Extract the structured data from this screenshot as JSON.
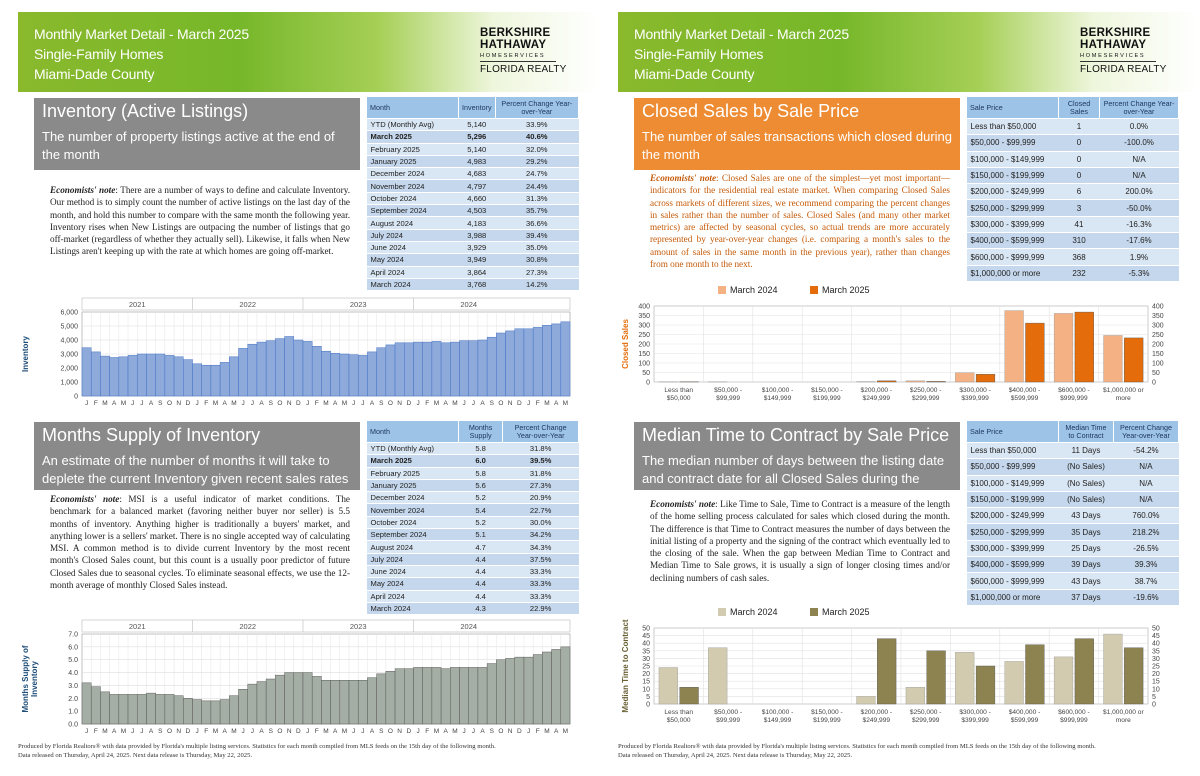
{
  "header": {
    "line1": "Monthly Market Detail - March 2025",
    "line2": "Single-Family Homes",
    "line3": "Miami-Dade County",
    "logo": {
      "line1": "BERKSHIRE",
      "line2": "HATHAWAY",
      "line3": "HOMESERVICES",
      "line4": "FLORIDA REALTY"
    }
  },
  "inventory": {
    "title": "Inventory (Active Listings)",
    "subtitle": "The number of property listings active at the end of the month",
    "note_label": "Economists' note",
    "note": ":  There are a number of ways to define and calculate Inventory.  Our method is to simply count the number of active listings on the last day of the month, and hold this number to compare with the same month the following year.  Inventory rises when New Listings are outpacing the number of listings that go off-market (regardless of whether they actually sell).  Likewise, it falls when New Listings aren't keeping up with the rate at which homes are going off-market.",
    "table_headers": [
      "Month",
      "Inventory",
      "Percent Change Year-over-Year"
    ],
    "rows": [
      [
        "YTD (Monthly Avg)",
        "5,140",
        "33.9%"
      ],
      [
        "March 2025",
        "5,296",
        "40.6%"
      ],
      [
        "February 2025",
        "5,140",
        "32.0%"
      ],
      [
        "January 2025",
        "4,983",
        "29.2%"
      ],
      [
        "December 2024",
        "4,683",
        "24.7%"
      ],
      [
        "November 2024",
        "4,797",
        "24.4%"
      ],
      [
        "October 2024",
        "4,660",
        "31.3%"
      ],
      [
        "September 2024",
        "4,503",
        "35.7%"
      ],
      [
        "August 2024",
        "4,183",
        "36.6%"
      ],
      [
        "July 2024",
        "3,988",
        "39.4%"
      ],
      [
        "June 2024",
        "3,929",
        "35.0%"
      ],
      [
        "May 2024",
        "3,949",
        "30.8%"
      ],
      [
        "April 2024",
        "3,864",
        "27.3%"
      ],
      [
        "March 2024",
        "3,768",
        "14.2%"
      ]
    ]
  },
  "msi": {
    "title": "Months Supply of Inventory",
    "subtitle": "An estimate of the number of months it will take to deplete the current Inventory given recent sales rates",
    "note_label": "Economists' note",
    "note": ":  MSI is a useful indicator of market conditions.  The benchmark for a balanced market (favoring neither buyer nor seller) is 5.5 months of inventory.  Anything higher is traditionally a buyers' market, and anything lower is a sellers' market.  There is no single accepted way of calculating MSI.  A common method is to divide current Inventory by the most recent month's Closed Sales count, but this count is a usually poor predictor of future Closed Sales due to seasonal cycles.  To eliminate seasonal effects, we use the 12-month average of monthly Closed Sales instead.",
    "table_headers": [
      "Month",
      "Months Supply",
      "Percent Change Year-over-Year"
    ],
    "rows": [
      [
        "YTD (Monthly Avg)",
        "5.8",
        "31.8%"
      ],
      [
        "March 2025",
        "6.0",
        "39.5%"
      ],
      [
        "February 2025",
        "5.8",
        "31.8%"
      ],
      [
        "January 2025",
        "5.6",
        "27.3%"
      ],
      [
        "December 2024",
        "5.2",
        "20.9%"
      ],
      [
        "November 2024",
        "5.4",
        "22.7%"
      ],
      [
        "October 2024",
        "5.2",
        "30.0%"
      ],
      [
        "September 2024",
        "5.1",
        "34.2%"
      ],
      [
        "August 2024",
        "4.7",
        "34.3%"
      ],
      [
        "July 2024",
        "4.4",
        "37.5%"
      ],
      [
        "June 2024",
        "4.4",
        "33.3%"
      ],
      [
        "May 2024",
        "4.4",
        "33.3%"
      ],
      [
        "April 2024",
        "4.4",
        "33.3%"
      ],
      [
        "March 2024",
        "4.3",
        "22.9%"
      ]
    ]
  },
  "closed": {
    "title": "Closed Sales by Sale Price",
    "subtitle": "The number of sales transactions which closed during the month",
    "note_label": "Economists' note",
    "note": ":  Closed Sales are one of the simplest—yet most important—indicators for the residential real estate market. When comparing Closed Sales across markets of different sizes, we recommend comparing the percent changes in sales rather than the number of sales. Closed Sales (and many other market metrics) are affected by seasonal cycles, so actual trends are more accurately represented by year-over-year changes (i.e. comparing a month's sales to the amount of sales in the same month in the previous year), rather than changes from one month to the next.",
    "table_headers": [
      "Sale Price",
      "Closed Sales",
      "Percent Change Year-over-Year"
    ],
    "rows": [
      [
        "Less than $50,000",
        "1",
        "0.0%"
      ],
      [
        "$50,000 - $99,999",
        "0",
        "-100.0%"
      ],
      [
        "$100,000 - $149,999",
        "0",
        "N/A"
      ],
      [
        "$150,000 - $199,999",
        "0",
        "N/A"
      ],
      [
        "$200,000 - $249,999",
        "6",
        "200.0%"
      ],
      [
        "$250,000 - $299,999",
        "3",
        "-50.0%"
      ],
      [
        "$300,000 - $399,999",
        "41",
        "-16.3%"
      ],
      [
        "$400,000 - $599,999",
        "310",
        "-17.6%"
      ],
      [
        "$600,000 - $999,999",
        "368",
        "1.9%"
      ],
      [
        "$1,000,000 or more",
        "232",
        "-5.3%"
      ]
    ]
  },
  "ttc": {
    "title": "Median Time to Contract by Sale Price",
    "subtitle": "The median number of days between the listing date and contract date for all Closed Sales during the month",
    "note_label": "Economists' note",
    "note": ":  Like Time to Sale, Time to Contract is a measure of the length of the home selling process calculated for sales which closed during the month.  The difference is that Time to Contract measures the number of days between the initial listing of a property and the signing of the contract which eventually led to the closing of the sale. When the gap between Median Time to Contract and Median Time to Sale grows, it is usually a sign of longer closing times and/or declining numbers of cash sales.",
    "table_headers": [
      "Sale Price",
      "Median Time to Contract",
      "Percent Change Year-over-Year"
    ],
    "rows": [
      [
        "Less than $50,000",
        "11 Days",
        "-54.2%"
      ],
      [
        "$50,000 - $99,999",
        "(No Sales)",
        "N/A"
      ],
      [
        "$100,000 - $149,999",
        "(No Sales)",
        "N/A"
      ],
      [
        "$150,000 - $199,999",
        "(No Sales)",
        "N/A"
      ],
      [
        "$200,000 - $249,999",
        "43 Days",
        "760.0%"
      ],
      [
        "$250,000 - $299,999",
        "35 Days",
        "218.2%"
      ],
      [
        "$300,000 - $399,999",
        "25 Days",
        "-26.5%"
      ],
      [
        "$400,000 - $599,999",
        "39 Days",
        "39.3%"
      ],
      [
        "$600,000 - $999,999",
        "43 Days",
        "38.7%"
      ],
      [
        "$1,000,000 or more",
        "37 Days",
        "-19.6%"
      ]
    ]
  },
  "footer": {
    "line1": "Produced by Florida Realtors® with data provided by Florida's multiple listing services. Statistics for each month compiled from MLS feeds on the 15th day of the following month.",
    "line2": "Data released on Thursday, April 24, 2025. Next data release is Thursday, May 22, 2025."
  },
  "colors": {
    "green": "#76b72a",
    "orange": "#ee8c34",
    "gray": "#8a8a8a",
    "blue_bar": "#8eaadb",
    "gray_bar": "#a5aea5",
    "orange_dark": "#e46c0a",
    "orange_light": "#f4b183",
    "olive_dark": "#8c8350",
    "olive_light": "#d2cbb0"
  },
  "chart_data": [
    {
      "type": "bar",
      "id": "inventory_trend",
      "ylabel": "Inventory",
      "ylim": [
        0,
        6000
      ],
      "yticks": [
        "0",
        "1,000",
        "2,000",
        "3,000",
        "4,000",
        "5,000",
        "6,000"
      ],
      "years": [
        "2021",
        "2022",
        "2023",
        "2024"
      ],
      "month_labels": [
        "J",
        "F",
        "M",
        "A",
        "M",
        "J",
        "J",
        "A",
        "S",
        "O",
        "N",
        "D"
      ],
      "values": [
        3450,
        3150,
        2850,
        2750,
        2800,
        2900,
        3000,
        3000,
        3000,
        2900,
        2800,
        2600,
        2300,
        2200,
        2200,
        2400,
        2800,
        3400,
        3700,
        3850,
        3950,
        4100,
        4250,
        4000,
        3900,
        3550,
        3200,
        3050,
        3000,
        2950,
        2900,
        3150,
        3450,
        3650,
        3800,
        3800,
        3850,
        3850,
        3900,
        3800,
        3850,
        3950,
        3950,
        4000,
        4200,
        4500,
        4650,
        4800,
        4800,
        4900,
        5050,
        5150,
        5300
      ]
    },
    {
      "type": "bar",
      "id": "msi_trend",
      "ylabel": "Months Supply of Inventory",
      "ylim": [
        0,
        7
      ],
      "yticks": [
        "0.0",
        "1.0",
        "2.0",
        "3.0",
        "4.0",
        "5.0",
        "6.0",
        "7.0"
      ],
      "years": [
        "2021",
        "2022",
        "2023",
        "2024"
      ],
      "month_labels": [
        "J",
        "F",
        "M",
        "A",
        "M",
        "J",
        "J",
        "A",
        "S",
        "O",
        "N",
        "D"
      ],
      "values": [
        3.2,
        2.9,
        2.5,
        2.3,
        2.3,
        2.3,
        2.3,
        2.4,
        2.3,
        2.3,
        2.2,
        2.0,
        1.9,
        1.8,
        1.8,
        1.9,
        2.2,
        2.7,
        3.1,
        3.3,
        3.5,
        3.8,
        4.0,
        4.0,
        4.0,
        3.7,
        3.4,
        3.4,
        3.4,
        3.4,
        3.4,
        3.6,
        3.9,
        4.1,
        4.3,
        4.3,
        4.4,
        4.4,
        4.4,
        4.3,
        4.4,
        4.4,
        4.4,
        4.4,
        4.7,
        5.0,
        5.1,
        5.2,
        5.2,
        5.4,
        5.6,
        5.8,
        6.0
      ]
    },
    {
      "type": "bar",
      "id": "closed_sales",
      "ylabel": "Closed Sales",
      "ylim": [
        0,
        400
      ],
      "yticks": [
        "0",
        "50",
        "100",
        "150",
        "200",
        "250",
        "300",
        "350",
        "400"
      ],
      "categories": [
        "Less than $50,000",
        "$50,000 - $99,999",
        "$100,000 - $149,999",
        "$150,000 - $199,999",
        "$200,000 - $249,999",
        "$250,000 - $299,999",
        "$300,000 - $399,999",
        "$400,000 - $599,999",
        "$600,000 - $999,999",
        "$1,000,000 or more"
      ],
      "series": [
        {
          "name": "March 2024",
          "values": [
            1,
            1,
            0,
            0,
            2,
            6,
            49,
            376,
            361,
            245
          ]
        },
        {
          "name": "March 2025",
          "values": [
            1,
            0,
            0,
            0,
            6,
            3,
            41,
            310,
            368,
            232
          ]
        }
      ]
    },
    {
      "type": "bar",
      "id": "time_to_contract",
      "ylabel": "Median Time to Contract",
      "ylim": [
        0,
        50
      ],
      "yticks": [
        "0",
        "5",
        "10",
        "15",
        "20",
        "25",
        "30",
        "35",
        "40",
        "45",
        "50"
      ],
      "categories": [
        "Less than $50,000",
        "$50,000 - $99,999",
        "$100,000 - $149,999",
        "$150,000 - $199,999",
        "$200,000 - $249,999",
        "$250,000 - $299,999",
        "$300,000 - $399,999",
        "$400,000 - $599,999",
        "$600,000 - $999,999",
        "$1,000,000 or more"
      ],
      "series": [
        {
          "name": "March 2024",
          "values": [
            24,
            37,
            0,
            0,
            5,
            11,
            34,
            28,
            31,
            46
          ]
        },
        {
          "name": "March 2025",
          "values": [
            11,
            0,
            0,
            0,
            43,
            35,
            25,
            39,
            43,
            37
          ]
        }
      ]
    }
  ]
}
